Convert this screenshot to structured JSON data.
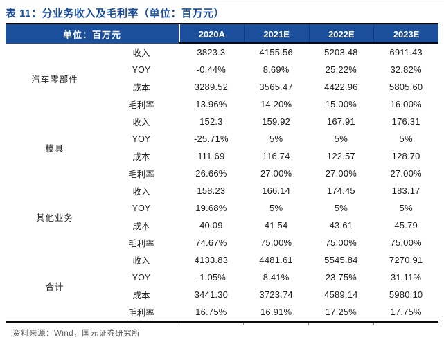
{
  "title": "表 11：分业务收入及毛利率（单位：百万元）",
  "source_note": "资料来源：Wind，国元证券研究所",
  "colors": {
    "accent_blue": "#1B4E9B",
    "rule_black": "#0a0a0a",
    "source_gray": "#595959"
  },
  "table": {
    "unit_label": "单位：百万元",
    "columns": [
      "2020A",
      "2021E",
      "2022E",
      "2023E"
    ],
    "groups": [
      {
        "category": "汽车零部件",
        "rows": [
          {
            "metric": "收入",
            "values": [
              "3823.3",
              "4155.56",
              "5203.48",
              "6911.43"
            ]
          },
          {
            "metric": "YOY",
            "values": [
              "-0.44%",
              "8.69%",
              "25.22%",
              "32.82%"
            ]
          },
          {
            "metric": "成本",
            "values": [
              "3289.52",
              "3565.47",
              "4422.96",
              "5805.60"
            ]
          },
          {
            "metric": "毛利率",
            "values": [
              "13.96%",
              "14.20%",
              "15.00%",
              "16.00%"
            ]
          }
        ]
      },
      {
        "category": "模具",
        "rows": [
          {
            "metric": "收入",
            "values": [
              "152.3",
              "159.92",
              "167.91",
              "176.31"
            ]
          },
          {
            "metric": "YOY",
            "values": [
              "-25.71%",
              "5%",
              "5%",
              "5%"
            ]
          },
          {
            "metric": "成本",
            "values": [
              "111.69",
              "116.74",
              "122.57",
              "128.70"
            ]
          },
          {
            "metric": "毛利率",
            "values": [
              "26.66%",
              "27.00%",
              "27.00%",
              "27.00%"
            ]
          }
        ]
      },
      {
        "category": "其他业务",
        "rows": [
          {
            "metric": "收入",
            "values": [
              "158.23",
              "166.14",
              "174.45",
              "183.17"
            ]
          },
          {
            "metric": "YOY",
            "values": [
              "19.68%",
              "5%",
              "5%",
              "5%"
            ]
          },
          {
            "metric": "成本",
            "values": [
              "40.09",
              "41.54",
              "43.61",
              "45.79"
            ]
          },
          {
            "metric": "毛利率",
            "values": [
              "74.67%",
              "75.00%",
              "75.00%",
              "75.00%"
            ]
          }
        ]
      },
      {
        "category": "合计",
        "rows": [
          {
            "metric": "收入",
            "values": [
              "4133.83",
              "4481.61",
              "5545.84",
              "7270.91"
            ]
          },
          {
            "metric": "YOY",
            "values": [
              "-1.05%",
              "8.41%",
              "23.75%",
              "31.11%"
            ]
          },
          {
            "metric": "成本",
            "values": [
              "3441.30",
              "3723.74",
              "4589.14",
              "5980.10"
            ]
          },
          {
            "metric": "毛利率",
            "values": [
              "16.75%",
              "16.91%",
              "17.25%",
              "17.75%"
            ]
          }
        ]
      }
    ]
  }
}
